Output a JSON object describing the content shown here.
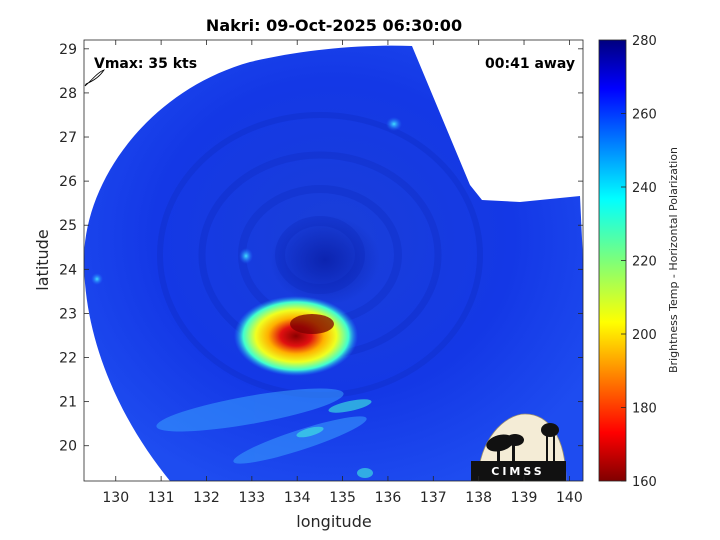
{
  "chart_data": {
    "type": "heatmap",
    "title": "Nakri: 09-Oct-2025 06:30:00",
    "xlabel": "longitude",
    "ylabel": "latitude",
    "xlim": [
      129.3,
      140.3
    ],
    "ylim": [
      19.2,
      29.2
    ],
    "xticks": [
      "130",
      "131",
      "132",
      "133",
      "134",
      "135",
      "136",
      "137",
      "138",
      "139",
      "140"
    ],
    "yticks": [
      "20",
      "21",
      "22",
      "23",
      "24",
      "25",
      "26",
      "27",
      "28",
      "29"
    ],
    "colorbar": {
      "label": "Brightness Temp - Horizontal Polarization",
      "range": [
        160,
        280
      ],
      "ticks": [
        "160",
        "180",
        "200",
        "220",
        "240",
        "260",
        "280"
      ],
      "colormap": "jet"
    },
    "annotations": {
      "vmax": "Vmax: 35 kts",
      "time_offset": "00:41 away"
    },
    "features": {
      "storm_center": {
        "lon": 134.3,
        "lat": 24.2,
        "value": 255
      },
      "convective_core": {
        "lon": 134.2,
        "lat": 22.8,
        "value": 165
      },
      "background_value": 262
    },
    "grid": false,
    "logo": "CIMSS"
  }
}
